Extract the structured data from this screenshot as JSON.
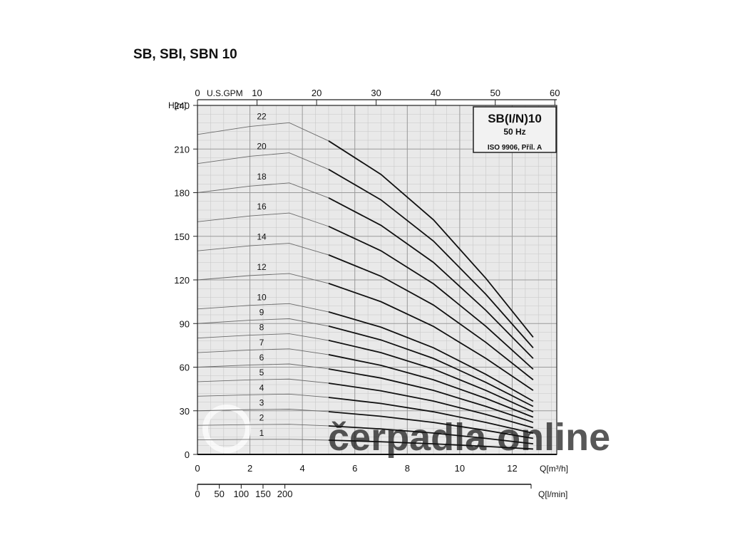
{
  "page": {
    "title": "SB, SBI, SBN 10"
  },
  "chart_data": {
    "type": "line",
    "ylabel": "H[m]",
    "xlabel": "Q[m³/h]",
    "xlabel_top": "U.S.GPM",
    "xlabel_bottom": "Q[l/min]",
    "xlim": [
      0,
      13.7
    ],
    "ylim": [
      0,
      240
    ],
    "x_ticks": [
      0,
      2,
      4,
      6,
      8,
      10,
      12
    ],
    "y_ticks": [
      0,
      30,
      60,
      90,
      120,
      150,
      180,
      210,
      240
    ],
    "top_axis_ticks": [
      0,
      10,
      20,
      30,
      40,
      50,
      60
    ],
    "bottom_axis_ticks": [
      0,
      50,
      100,
      150,
      200
    ],
    "grid": true,
    "info_box": {
      "title": "SB(I/N)10",
      "subtitle": "50 Hz",
      "note": "ISO 9906, Příl. A"
    },
    "watermark": "čerpadla online",
    "series": [
      {
        "name": "1",
        "stages": 1,
        "points": [
          [
            0,
            10
          ],
          [
            2,
            10.3
          ],
          [
            3.5,
            10.4
          ],
          [
            5,
            9.8
          ],
          [
            7,
            8.7
          ],
          [
            9,
            7.3
          ],
          [
            11,
            5.5
          ],
          [
            12.8,
            3.7
          ]
        ]
      },
      {
        "name": "2",
        "stages": 2,
        "points": [
          [
            0,
            20
          ],
          [
            2,
            20.5
          ],
          [
            3.5,
            20.7
          ],
          [
            5,
            19.6
          ],
          [
            7,
            17.5
          ],
          [
            9,
            14.7
          ],
          [
            11,
            11
          ],
          [
            12.8,
            7.3
          ]
        ]
      },
      {
        "name": "3",
        "stages": 3,
        "points": [
          [
            0,
            30
          ],
          [
            2,
            30.8
          ],
          [
            3.5,
            31.1
          ],
          [
            5,
            29.4
          ],
          [
            7,
            26.2
          ],
          [
            9,
            22
          ],
          [
            11,
            16.5
          ],
          [
            12.8,
            11
          ]
        ]
      },
      {
        "name": "4",
        "stages": 4,
        "points": [
          [
            0,
            40
          ],
          [
            2,
            41
          ],
          [
            3.5,
            41.5
          ],
          [
            5,
            39.2
          ],
          [
            7,
            35
          ],
          [
            9,
            29.3
          ],
          [
            11,
            22
          ],
          [
            12.8,
            14.6
          ]
        ]
      },
      {
        "name": "5",
        "stages": 5,
        "points": [
          [
            0,
            50
          ],
          [
            2,
            51.3
          ],
          [
            3.5,
            51.8
          ],
          [
            5,
            49
          ],
          [
            7,
            43.7
          ],
          [
            9,
            36.7
          ],
          [
            11,
            27.5
          ],
          [
            12.8,
            18.3
          ]
        ]
      },
      {
        "name": "6",
        "stages": 6,
        "points": [
          [
            0,
            60
          ],
          [
            2,
            61.5
          ],
          [
            3.5,
            62.2
          ],
          [
            5,
            58.8
          ],
          [
            7,
            52.5
          ],
          [
            9,
            44
          ],
          [
            11,
            33
          ],
          [
            12.8,
            22
          ]
        ]
      },
      {
        "name": "7",
        "stages": 7,
        "points": [
          [
            0,
            70
          ],
          [
            2,
            71.8
          ],
          [
            3.5,
            72.6
          ],
          [
            5,
            68.6
          ],
          [
            7,
            61.2
          ],
          [
            9,
            51.3
          ],
          [
            11,
            38.5
          ],
          [
            12.8,
            25.6
          ]
        ]
      },
      {
        "name": "8",
        "stages": 8,
        "points": [
          [
            0,
            80
          ],
          [
            2,
            82
          ],
          [
            3.5,
            83
          ],
          [
            5,
            78.4
          ],
          [
            7,
            70
          ],
          [
            9,
            58.7
          ],
          [
            11,
            44
          ],
          [
            12.8,
            29.3
          ]
        ]
      },
      {
        "name": "9",
        "stages": 9,
        "points": [
          [
            0,
            90
          ],
          [
            2,
            92.3
          ],
          [
            3.5,
            93.3
          ],
          [
            5,
            88.2
          ],
          [
            7,
            78.7
          ],
          [
            9,
            66
          ],
          [
            11,
            49.5
          ],
          [
            12.8,
            33
          ]
        ]
      },
      {
        "name": "10",
        "stages": 10,
        "points": [
          [
            0,
            100
          ],
          [
            2,
            102.5
          ],
          [
            3.5,
            103.7
          ],
          [
            5,
            98
          ],
          [
            7,
            87.5
          ],
          [
            9,
            73.3
          ],
          [
            11,
            55
          ],
          [
            12.8,
            36.6
          ]
        ]
      },
      {
        "name": "12",
        "stages": 12,
        "points": [
          [
            0,
            120
          ],
          [
            2,
            123
          ],
          [
            3.5,
            124.4
          ],
          [
            5,
            117.6
          ],
          [
            7,
            105
          ],
          [
            9,
            88
          ],
          [
            11,
            66
          ],
          [
            12.8,
            44
          ]
        ]
      },
      {
        "name": "14",
        "stages": 14,
        "points": [
          [
            0,
            140
          ],
          [
            2,
            143.5
          ],
          [
            3.5,
            145.2
          ],
          [
            5,
            137.2
          ],
          [
            7,
            122.5
          ],
          [
            9,
            102.7
          ],
          [
            11,
            77
          ],
          [
            12.8,
            51.3
          ]
        ]
      },
      {
        "name": "16",
        "stages": 16,
        "points": [
          [
            0,
            160
          ],
          [
            2,
            164
          ],
          [
            3.5,
            166
          ],
          [
            5,
            156.8
          ],
          [
            7,
            140
          ],
          [
            9,
            117.3
          ],
          [
            11,
            88
          ],
          [
            12.8,
            58.6
          ]
        ]
      },
      {
        "name": "18",
        "stages": 18,
        "points": [
          [
            0,
            180
          ],
          [
            2,
            184.5
          ],
          [
            3.5,
            186.7
          ],
          [
            5,
            176.4
          ],
          [
            7,
            157.5
          ],
          [
            9,
            132
          ],
          [
            11,
            99
          ],
          [
            12.8,
            66
          ]
        ]
      },
      {
        "name": "20",
        "stages": 20,
        "points": [
          [
            0,
            200
          ],
          [
            2,
            205
          ],
          [
            3.5,
            207.4
          ],
          [
            5,
            196
          ],
          [
            7,
            175
          ],
          [
            9,
            146.7
          ],
          [
            11,
            110
          ],
          [
            12.8,
            73.3
          ]
        ]
      },
      {
        "name": "22",
        "stages": 22,
        "points": [
          [
            0,
            220
          ],
          [
            2,
            225.5
          ],
          [
            3.5,
            228.1
          ],
          [
            5,
            215.6
          ],
          [
            7,
            192.5
          ],
          [
            9,
            161.3
          ],
          [
            11,
            121
          ],
          [
            12.8,
            80.6
          ]
        ]
      }
    ]
  }
}
